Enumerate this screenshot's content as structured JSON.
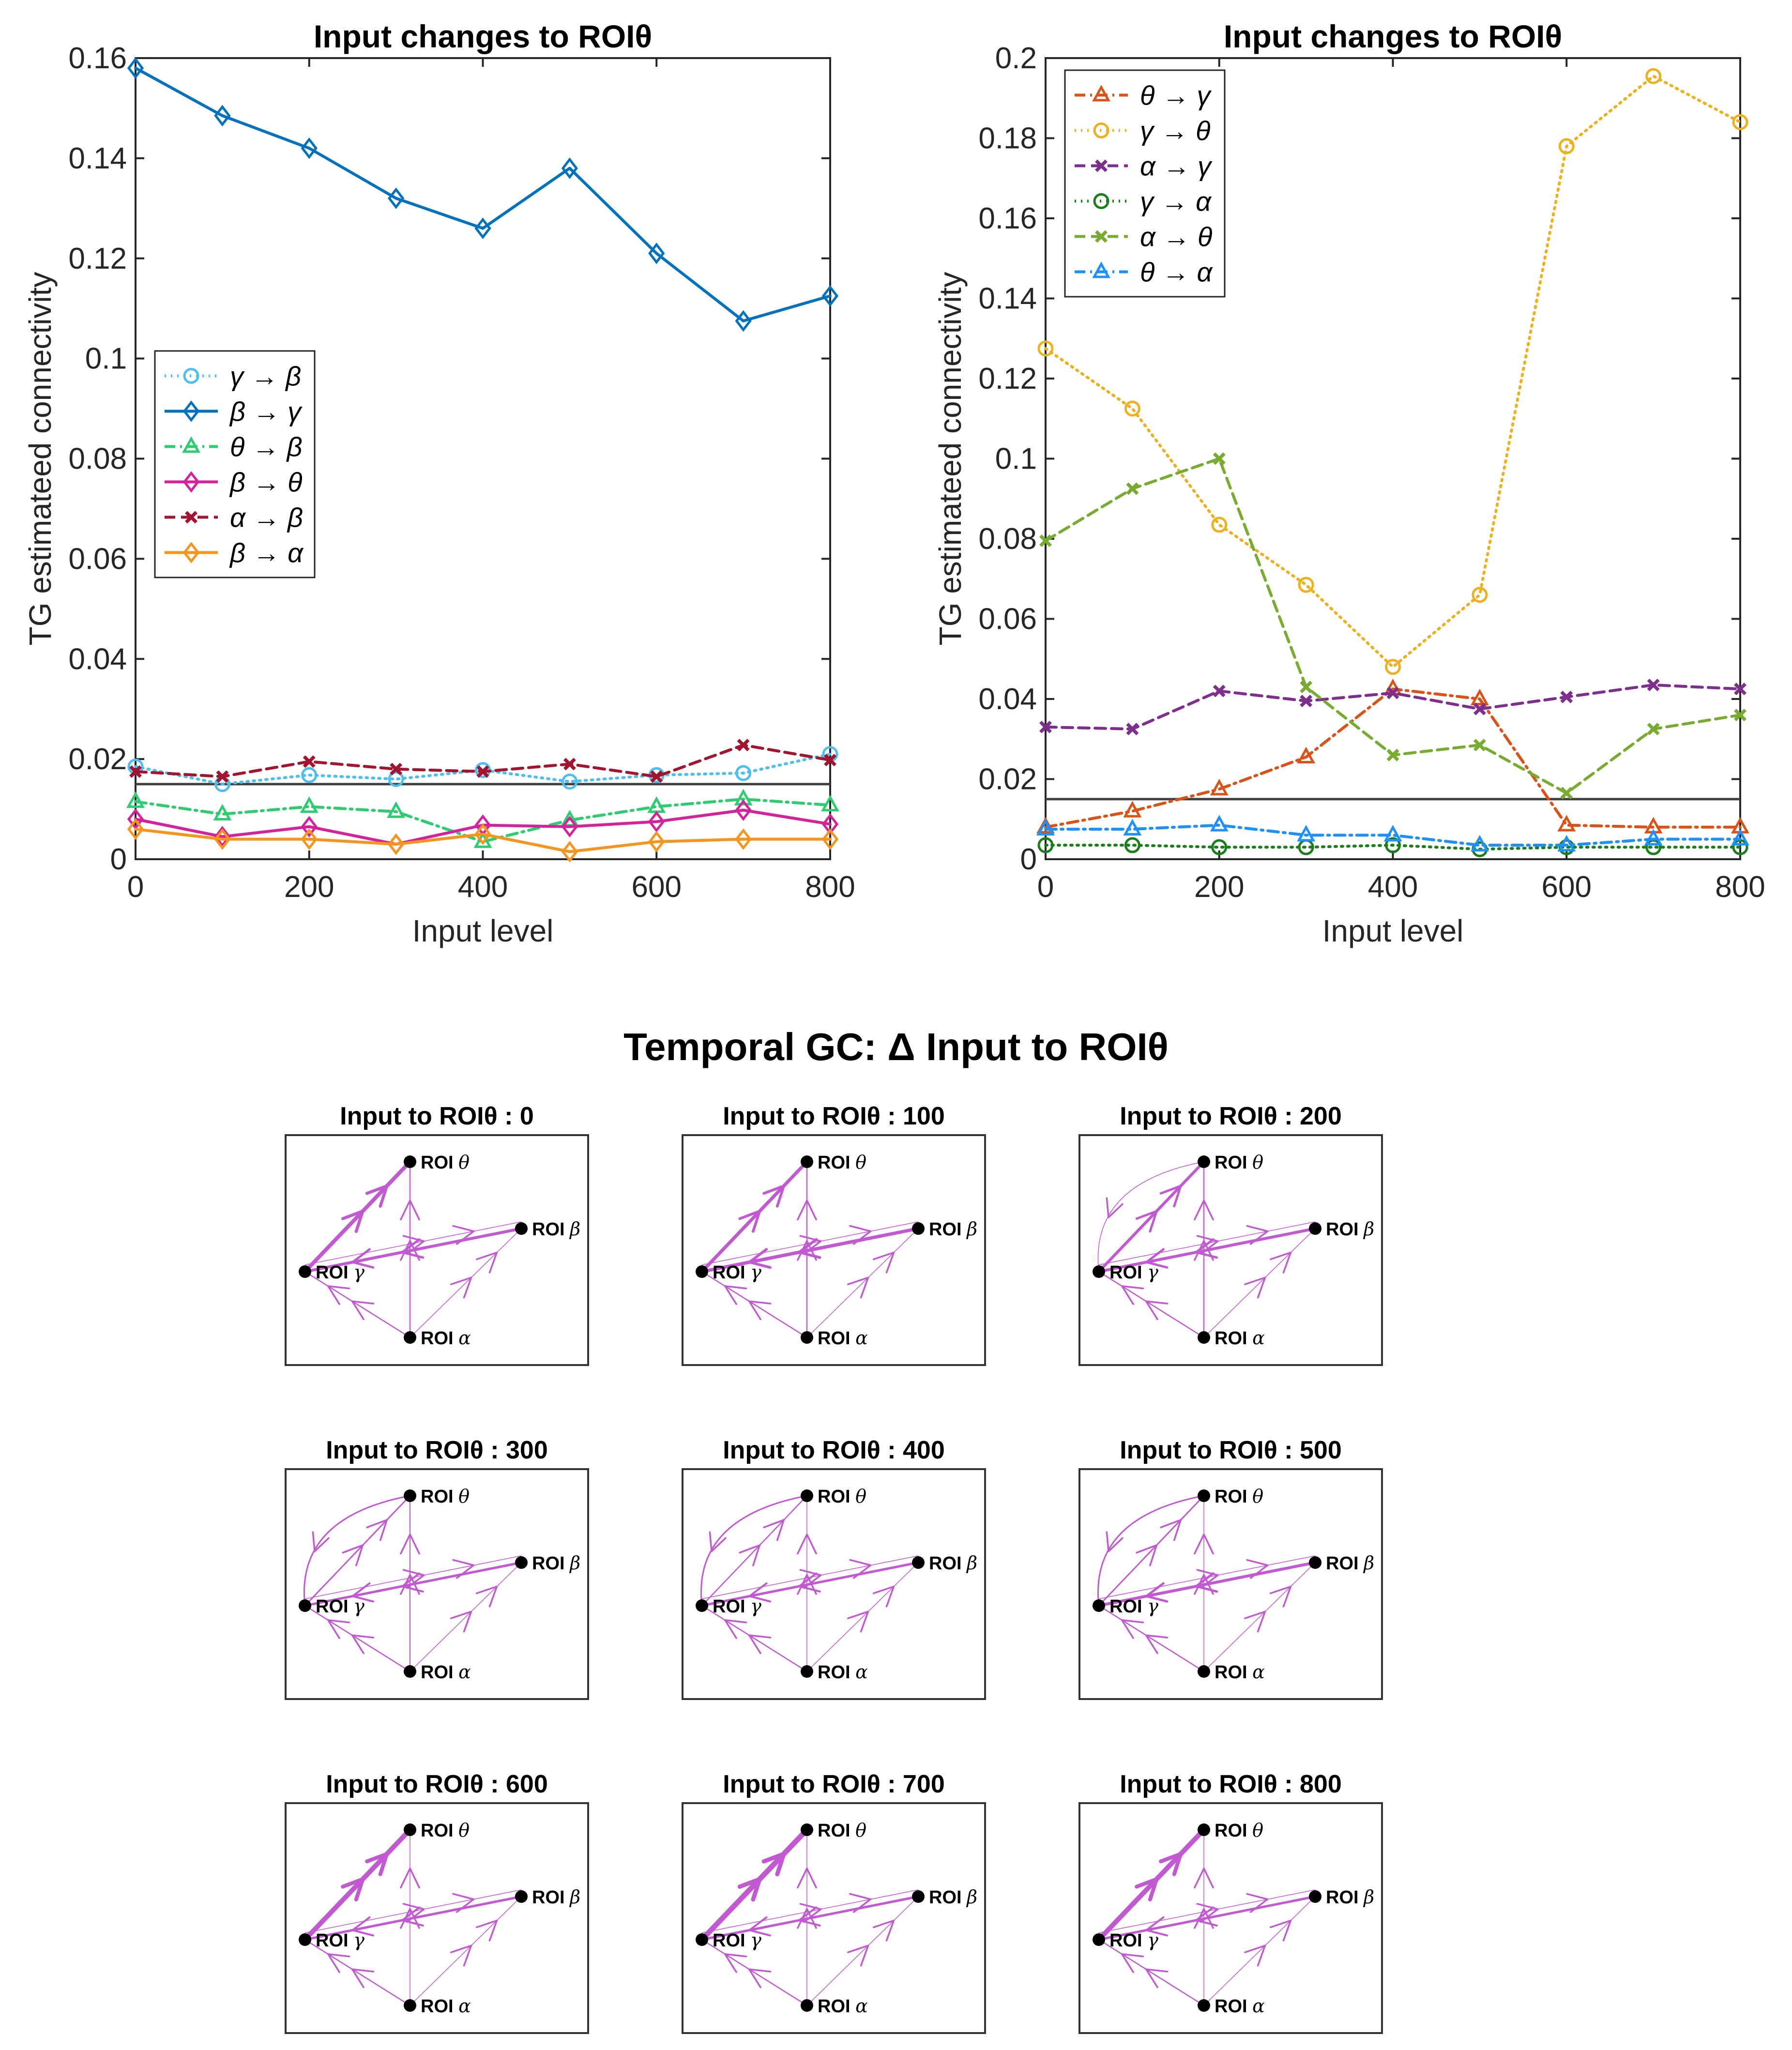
{
  "colors": {
    "axis": "#262626",
    "edge": "#c159d1",
    "node": "#000000",
    "threshold": "#404040"
  },
  "chart_data": [
    {
      "type": "line",
      "title": "Input changes to ROIθ",
      "xlabel": "Input level",
      "ylabel": "TG estimateed connectivity",
      "xlim": [
        0,
        800
      ],
      "ylim": [
        0,
        0.16
      ],
      "x_ticks": [
        "0",
        "200",
        "400",
        "600",
        "800"
      ],
      "y_ticks": [
        "0",
        "0.02",
        "0.04",
        "0.06",
        "0.08",
        "0.1",
        "0.12",
        "0.14",
        "0.16"
      ],
      "threshold": 0.015,
      "legend_position": "middle-left",
      "x": [
        0,
        100,
        200,
        300,
        400,
        500,
        600,
        700,
        800
      ],
      "series": [
        {
          "name": "γ → β",
          "color": "#4dbeee",
          "dash": "dotted",
          "marker": "circle",
          "values": [
            0.0185,
            0.015,
            0.0168,
            0.016,
            0.0178,
            0.0155,
            0.0168,
            0.0172,
            0.021
          ]
        },
        {
          "name": "β → γ",
          "color": "#0072bd",
          "dash": "solid",
          "marker": "diamond",
          "values": [
            0.158,
            0.1485,
            0.142,
            0.132,
            0.126,
            0.138,
            0.121,
            0.1075,
            0.1125
          ]
        },
        {
          "name": "θ → β",
          "color": "#2ecc71",
          "dash": "dashdot",
          "marker": "triangle",
          "values": [
            0.0115,
            0.009,
            0.0105,
            0.0095,
            0.0035,
            0.0078,
            0.0105,
            0.012,
            0.0108
          ]
        },
        {
          "name": "β → θ",
          "color": "#d4229b",
          "dash": "solid",
          "marker": "diamond",
          "values": [
            0.008,
            0.0045,
            0.0065,
            0.003,
            0.0068,
            0.0065,
            0.0075,
            0.0098,
            0.007
          ]
        },
        {
          "name": "α → β",
          "color": "#a2142f",
          "dash": "dashed",
          "marker": "x",
          "values": [
            0.0175,
            0.0165,
            0.0195,
            0.018,
            0.0175,
            0.019,
            0.0165,
            0.0228,
            0.0198
          ]
        },
        {
          "name": "β → α",
          "color": "#f7941d",
          "dash": "solid",
          "marker": "diamond",
          "values": [
            0.006,
            0.004,
            0.004,
            0.003,
            0.005,
            0.0015,
            0.0035,
            0.004,
            0.004
          ]
        }
      ]
    },
    {
      "type": "line",
      "title": "Input changes to ROIθ",
      "xlabel": "Input level",
      "ylabel": "TG estimateed connectivity",
      "xlim": [
        0,
        800
      ],
      "ylim": [
        0,
        0.2
      ],
      "x_ticks": [
        "0",
        "200",
        "400",
        "600",
        "800"
      ],
      "y_ticks": [
        "0",
        "0.02",
        "0.04",
        "0.06",
        "0.08",
        "0.1",
        "0.12",
        "0.14",
        "0.16",
        "0.18",
        "0.2"
      ],
      "threshold": 0.015,
      "legend_position": "top-left",
      "x": [
        0,
        100,
        200,
        300,
        400,
        500,
        600,
        700,
        800
      ],
      "series": [
        {
          "name": "θ → γ",
          "color": "#d95319",
          "dash": "dashdot",
          "marker": "triangle",
          "values": [
            0.008,
            0.012,
            0.0175,
            0.0255,
            0.0425,
            0.04,
            0.0085,
            0.008,
            0.008
          ]
        },
        {
          "name": "γ → θ",
          "color": "#edb120",
          "dash": "dotted",
          "marker": "circle",
          "values": [
            0.1275,
            0.1125,
            0.0835,
            0.0685,
            0.048,
            0.066,
            0.178,
            0.1955,
            0.184
          ]
        },
        {
          "name": "α → γ",
          "color": "#7e2f8e",
          "dash": "dashed",
          "marker": "x",
          "values": [
            0.033,
            0.0325,
            0.042,
            0.0395,
            0.0415,
            0.0375,
            0.0405,
            0.0435,
            0.0425
          ]
        },
        {
          "name": "γ → α",
          "color": "#1a7f1a",
          "dash": "dotted",
          "marker": "circle",
          "values": [
            0.0035,
            0.0035,
            0.003,
            0.003,
            0.0035,
            0.0025,
            0.003,
            0.003,
            0.003
          ]
        },
        {
          "name": "α → θ",
          "color": "#77ac30",
          "dash": "dashed",
          "marker": "x",
          "values": [
            0.0795,
            0.0925,
            0.1,
            0.043,
            0.026,
            0.0285,
            0.0165,
            0.0325,
            0.036
          ]
        },
        {
          "name": "θ → α",
          "color": "#1e90ff",
          "dash": "dashdot",
          "marker": "triangle",
          "values": [
            0.0075,
            0.0075,
            0.0085,
            0.006,
            0.006,
            0.0035,
            0.0035,
            0.005,
            0.005
          ]
        }
      ]
    }
  ],
  "network": {
    "title": "Temporal GC: Δ Input to ROIθ",
    "panel_title_prefix": "Input to ROIθ : ",
    "node_labels": {
      "theta": "ROI θ",
      "beta": "ROI β",
      "gamma": "ROI γ",
      "alpha": "ROI α"
    },
    "panels": [
      {
        "input": "0",
        "edges": {
          "gamma_theta": 8,
          "beta_gamma": 6,
          "alpha_theta": 2.5,
          "alpha_gamma": 2.5,
          "gamma_beta": 1.5,
          "theta_gamma_arc": 0,
          "alpha_beta": 1.5
        }
      },
      {
        "input": "100",
        "edges": {
          "gamma_theta": 7,
          "beta_gamma": 7,
          "alpha_theta": 2.5,
          "alpha_gamma": 2.5,
          "gamma_beta": 1.5,
          "theta_gamma_arc": 0,
          "alpha_beta": 1.5
        }
      },
      {
        "input": "200",
        "edges": {
          "gamma_theta": 6,
          "beta_gamma": 6,
          "alpha_theta": 2.5,
          "alpha_gamma": 2.5,
          "gamma_beta": 1.5,
          "theta_gamma_arc": 1.5,
          "alpha_beta": 1.5
        }
      },
      {
        "input": "300",
        "edges": {
          "gamma_theta": 3,
          "beta_gamma": 5,
          "alpha_theta": 2,
          "alpha_gamma": 2.5,
          "gamma_beta": 1.5,
          "theta_gamma_arc": 3,
          "alpha_beta": 1.5
        }
      },
      {
        "input": "400",
        "edges": {
          "gamma_theta": 2.5,
          "beta_gamma": 5,
          "alpha_theta": 1.5,
          "alpha_gamma": 2.5,
          "gamma_beta": 1.5,
          "theta_gamma_arc": 3,
          "alpha_beta": 1.5
        }
      },
      {
        "input": "500",
        "edges": {
          "gamma_theta": 3,
          "beta_gamma": 6,
          "alpha_theta": 1.5,
          "alpha_gamma": 2.5,
          "gamma_beta": 1.5,
          "theta_gamma_arc": 3,
          "alpha_beta": 1.5
        }
      },
      {
        "input": "600",
        "edges": {
          "gamma_theta": 10,
          "beta_gamma": 5,
          "alpha_theta": 1.5,
          "alpha_gamma": 2.5,
          "gamma_beta": 1.5,
          "theta_gamma_arc": 0,
          "alpha_beta": 1.5
        }
      },
      {
        "input": "700",
        "edges": {
          "gamma_theta": 11,
          "beta_gamma": 5,
          "alpha_theta": 1.5,
          "alpha_gamma": 2.5,
          "gamma_beta": 1.5,
          "theta_gamma_arc": 0,
          "alpha_beta": 1.5
        }
      },
      {
        "input": "800",
        "edges": {
          "gamma_theta": 10,
          "beta_gamma": 5,
          "alpha_theta": 1.5,
          "alpha_gamma": 2.5,
          "gamma_beta": 1.5,
          "theta_gamma_arc": 0,
          "alpha_beta": 1.5
        }
      }
    ]
  }
}
